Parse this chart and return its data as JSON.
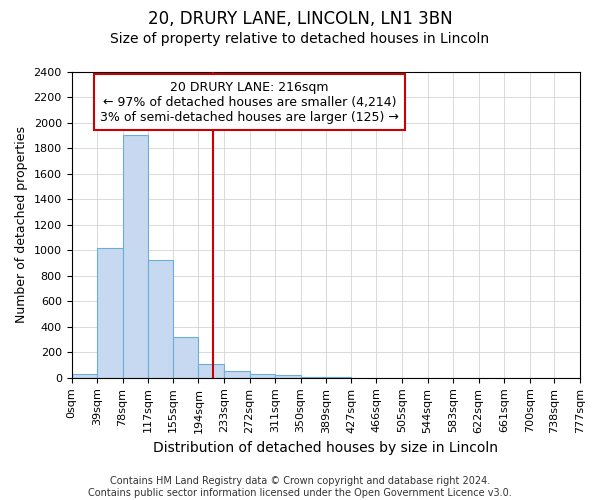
{
  "title1": "20, DRURY LANE, LINCOLN, LN1 3BN",
  "title2": "Size of property relative to detached houses in Lincoln",
  "xlabel": "Distribution of detached houses by size in Lincoln",
  "ylabel": "Number of detached properties",
  "bar_edges": [
    0,
    39,
    78,
    117,
    155,
    194,
    233,
    272,
    311,
    350,
    389,
    427,
    466,
    505,
    544,
    583,
    622,
    661,
    700,
    738,
    777
  ],
  "bar_heights": [
    28,
    1020,
    1900,
    920,
    320,
    105,
    50,
    30,
    20,
    8,
    4,
    0,
    0,
    0,
    0,
    0,
    0,
    0,
    0,
    0
  ],
  "bar_color": "#c6d9f0",
  "bar_edgecolor": "#6baed6",
  "vline_x": 216,
  "vline_color": "#cc0000",
  "annotation_text": "20 DRURY LANE: 216sqm\n← 97% of detached houses are smaller (4,214)\n3% of semi-detached houses are larger (125) →",
  "annotation_box_edgecolor": "#cc0000",
  "annotation_box_facecolor": "#ffffff",
  "ylim": [
    0,
    2400
  ],
  "yticks": [
    0,
    200,
    400,
    600,
    800,
    1000,
    1200,
    1400,
    1600,
    1800,
    2000,
    2200,
    2400
  ],
  "grid_color": "#cccccc",
  "background_color": "#ffffff",
  "axes_background": "#ffffff",
  "footer_text": "Contains HM Land Registry data © Crown copyright and database right 2024.\nContains public sector information licensed under the Open Government Licence v3.0.",
  "title1_fontsize": 12,
  "title2_fontsize": 10,
  "xlabel_fontsize": 10,
  "ylabel_fontsize": 9,
  "tick_fontsize": 8,
  "annotation_fontsize": 9,
  "footer_fontsize": 7
}
